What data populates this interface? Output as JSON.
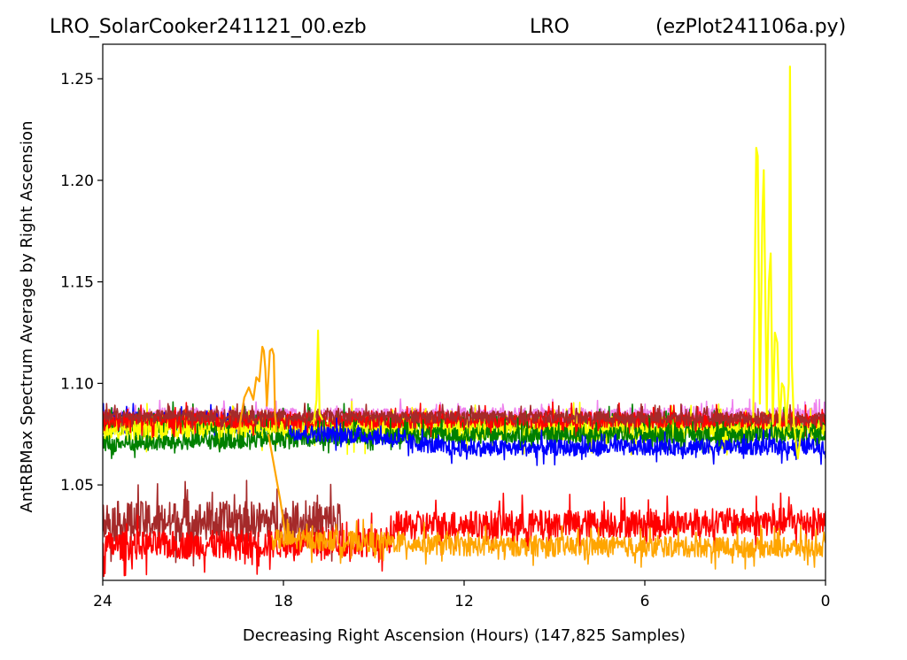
{
  "chart_data": {
    "type": "line",
    "title_left": "LRO_SolarCooker241121_00.ezb",
    "title_center": "LRO",
    "title_right": "(ezPlot241106a.py)",
    "xlabel": "Decreasing Right Ascension (Hours) (147,825 Samples)",
    "ylabel": "AntRBMax Spectrum Average by Right Ascension",
    "x_direction": "decreasing",
    "xlim": [
      24,
      0
    ],
    "ylim": [
      1.003,
      1.267
    ],
    "x_ticks": [
      "24",
      "18",
      "12",
      "6",
      "0"
    ],
    "x_tick_values": [
      24,
      18,
      12,
      6,
      0
    ],
    "y_ticks": [
      "1.05",
      "1.10",
      "1.15",
      "1.20",
      "1.25"
    ],
    "y_tick_values": [
      1.05,
      1.1,
      1.15,
      1.2,
      1.25
    ],
    "grid": false,
    "legend": "none",
    "series": [
      {
        "color": "#ee82ee",
        "segments": [
          [
            [
              24,
              1.084
            ],
            [
              0,
              1.084
            ]
          ]
        ],
        "noise": 0.004
      },
      {
        "color": "#0000ff",
        "segments": [
          [
            [
              24,
              1.082
            ],
            [
              18,
              1.082
            ]
          ]
        ],
        "noise": 0.004
      },
      {
        "color": "#ffa500",
        "segments": [
          [
            [
              24,
              1.08
            ],
            [
              18,
              1.08
            ]
          ]
        ],
        "noise": 0.004
      },
      {
        "color": "#008000",
        "segments": [
          [
            [
              24,
              1.08
            ],
            [
              0,
              1.079
            ]
          ]
        ],
        "noise": 0.005
      },
      {
        "color": "#ffff00",
        "segments": [
          [
            [
              24,
              1.078
            ],
            [
              0,
              1.078
            ]
          ]
        ],
        "noise": 0.006
      },
      {
        "color": "#ff0000",
        "segments": [
          [
            [
              24,
              1.082
            ],
            [
              0,
              1.082
            ]
          ]
        ],
        "noise": 0.004
      },
      {
        "color": "#a52a2a",
        "segments": [
          [
            [
              24,
              1.084
            ],
            [
              0,
              1.083
            ]
          ]
        ],
        "noise": 0.003
      },
      {
        "color": "#008000",
        "segments": [
          [
            [
              24,
              1.07
            ],
            [
              14.5,
              1.074
            ],
            [
              0,
              1.075
            ]
          ]
        ],
        "noise": 0.004
      },
      {
        "color": "#0000ff",
        "segments": [
          [
            [
              17.8,
              1.076
            ],
            [
              15,
              1.074
            ],
            [
              12.5,
              1.068
            ],
            [
              0,
              1.069
            ]
          ]
        ],
        "noise": 0.004
      },
      {
        "color": "#a52a2a",
        "segments": [
          [
            [
              24,
              1.032
            ],
            [
              16.1,
              1.032
            ]
          ]
        ],
        "noise": 0.01
      },
      {
        "color": "#ff0000",
        "segments": [
          [
            [
              24,
              1.02
            ],
            [
              18.0,
              1.021
            ],
            [
              14.3,
              1.022
            ]
          ],
          [
            [
              14.3,
              1.03
            ],
            [
              0,
              1.032
            ]
          ]
        ],
        "noise": 0.007
      },
      {
        "color": "#ffa500",
        "segments": [
          [
            [
              18.4,
              1.023
            ],
            [
              15,
              1.022
            ],
            [
              12,
              1.02
            ],
            [
              0,
              1.019
            ]
          ]
        ],
        "noise": 0.005
      }
    ],
    "spikes": [
      {
        "color": "#ffa500",
        "points": [
          [
            19.5,
            1.075
          ],
          [
            19.3,
            1.093
          ],
          [
            19.15,
            1.098
          ],
          [
            19.0,
            1.092
          ],
          [
            18.9,
            1.103
          ],
          [
            18.8,
            1.101
          ],
          [
            18.75,
            1.11
          ],
          [
            18.7,
            1.118
          ],
          [
            18.65,
            1.116
          ],
          [
            18.6,
            1.107
          ],
          [
            18.55,
            1.089
          ],
          [
            18.45,
            1.116
          ],
          [
            18.38,
            1.117
          ],
          [
            18.32,
            1.114
          ],
          [
            18.28,
            1.085
          ],
          [
            18.22,
            1.076
          ]
        ]
      },
      {
        "color": "#ffa500",
        "points": [
          [
            18.5,
            1.075
          ],
          [
            18.1,
            1.042
          ],
          [
            17.9,
            1.022
          ]
        ]
      },
      {
        "color": "#ffff00",
        "points": [
          [
            17.0,
            1.08
          ],
          [
            16.9,
            1.092
          ],
          [
            16.85,
            1.126
          ],
          [
            16.8,
            1.085
          ],
          [
            16.7,
            1.082
          ]
        ]
      },
      {
        "color": "#ffff00",
        "points": [
          [
            2.4,
            1.083
          ],
          [
            2.35,
            1.15
          ],
          [
            2.3,
            1.216
          ],
          [
            2.25,
            1.212
          ],
          [
            2.18,
            1.09
          ],
          [
            2.1,
            1.18
          ],
          [
            2.05,
            1.205
          ],
          [
            1.95,
            1.085
          ],
          [
            1.88,
            1.15
          ],
          [
            1.82,
            1.164
          ],
          [
            1.75,
            1.08
          ],
          [
            1.68,
            1.125
          ],
          [
            1.6,
            1.12
          ],
          [
            1.52,
            1.078
          ],
          [
            1.45,
            1.1
          ],
          [
            1.38,
            1.098
          ],
          [
            1.3,
            1.079
          ],
          [
            1.22,
            1.1
          ],
          [
            1.18,
            1.256
          ],
          [
            1.12,
            1.11
          ],
          [
            1.05,
            1.08
          ],
          [
            0.92,
            1.063
          ],
          [
            0.8,
            1.078
          ]
        ]
      }
    ]
  }
}
